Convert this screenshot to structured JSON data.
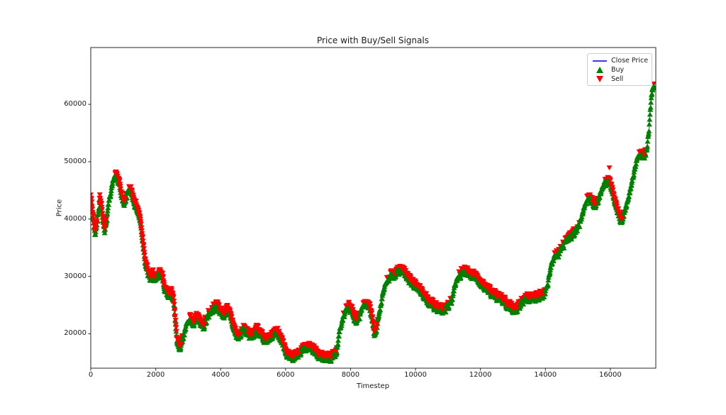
{
  "title": "Price with Buy/Sell Signals",
  "axes": {
    "xlabel": "Timestep",
    "ylabel": "Price",
    "xticks": [
      0,
      2000,
      4000,
      6000,
      8000,
      10000,
      12000,
      14000,
      16000
    ],
    "yticks": [
      20000,
      30000,
      40000,
      50000,
      60000
    ],
    "xlim": [
      0,
      17400
    ],
    "ylim": [
      14000,
      69900
    ],
    "grid": false
  },
  "legend": {
    "position": "upper right",
    "items": [
      {
        "label": "Close Price",
        "marker": "line",
        "color": "#3a3ae0"
      },
      {
        "label": "Buy",
        "marker": "triangle-up",
        "color": "#008000"
      },
      {
        "label": "Sell",
        "marker": "triangle-down",
        "color": "#ff0000"
      }
    ]
  },
  "colors": {
    "close_line": "#3a3ae0",
    "buy": "#008000",
    "sell": "#ff0000",
    "spine": "#262626",
    "text": "#1a1a1a"
  },
  "chart_data": {
    "type": "line",
    "title": "Price with Buy/Sell Signals",
    "xlabel": "Timestep",
    "ylabel": "Price",
    "xlim": [
      0,
      17400
    ],
    "ylim": [
      14000,
      69900
    ],
    "legend_position": "upper right",
    "series": [
      {
        "name": "Close Price",
        "note": "close price vs timestep; anchor points read from plot, buy/sell triangle markers densely cover the whole line (red sells on top edge, green buys on bottom edge, green runs on steep rallies)",
        "points": [
          [
            0,
            43800
          ],
          [
            60,
            41000
          ],
          [
            130,
            37600
          ],
          [
            200,
            39800
          ],
          [
            280,
            43900
          ],
          [
            360,
            41000
          ],
          [
            430,
            38200
          ],
          [
            500,
            40600
          ],
          [
            560,
            43000
          ],
          [
            640,
            45500
          ],
          [
            720,
            47300
          ],
          [
            800,
            47600
          ],
          [
            870,
            46300
          ],
          [
            950,
            44200
          ],
          [
            1030,
            42800
          ],
          [
            1120,
            44600
          ],
          [
            1200,
            45400
          ],
          [
            1280,
            44300
          ],
          [
            1360,
            42800
          ],
          [
            1450,
            41600
          ],
          [
            1520,
            40000
          ],
          [
            1600,
            36500
          ],
          [
            1680,
            32800
          ],
          [
            1760,
            30600
          ],
          [
            1840,
            29600
          ],
          [
            1920,
            30400
          ],
          [
            2000,
            29300
          ],
          [
            2080,
            30300
          ],
          [
            2160,
            30800
          ],
          [
            2240,
            29000
          ],
          [
            2320,
            27400
          ],
          [
            2400,
            26700
          ],
          [
            2470,
            27600
          ],
          [
            2540,
            26500
          ],
          [
            2600,
            23000
          ],
          [
            2660,
            18600
          ],
          [
            2720,
            17600
          ],
          [
            2800,
            18800
          ],
          [
            2880,
            20000
          ],
          [
            2960,
            21700
          ],
          [
            3060,
            22500
          ],
          [
            3160,
            21600
          ],
          [
            3260,
            23100
          ],
          [
            3360,
            22100
          ],
          [
            3460,
            21400
          ],
          [
            3560,
            22700
          ],
          [
            3680,
            23800
          ],
          [
            3800,
            24700
          ],
          [
            3900,
            25100
          ],
          [
            4000,
            23900
          ],
          [
            4100,
            23300
          ],
          [
            4200,
            24400
          ],
          [
            4300,
            23400
          ],
          [
            4400,
            21200
          ],
          [
            4500,
            19600
          ],
          [
            4600,
            20000
          ],
          [
            4700,
            21100
          ],
          [
            4800,
            20500
          ],
          [
            4900,
            19600
          ],
          [
            5000,
            19900
          ],
          [
            5100,
            20600
          ],
          [
            5200,
            20100
          ],
          [
            5300,
            19500
          ],
          [
            5400,
            18900
          ],
          [
            5500,
            19200
          ],
          [
            5600,
            19800
          ],
          [
            5700,
            20400
          ],
          [
            5800,
            20100
          ],
          [
            5900,
            18800
          ],
          [
            6000,
            16900
          ],
          [
            6100,
            16100
          ],
          [
            6200,
            15800
          ],
          [
            6300,
            16100
          ],
          [
            6400,
            16600
          ],
          [
            6500,
            17100
          ],
          [
            6600,
            17700
          ],
          [
            6700,
            18100
          ],
          [
            6800,
            17700
          ],
          [
            6900,
            16900
          ],
          [
            7000,
            16400
          ],
          [
            7100,
            16000
          ],
          [
            7200,
            15800
          ],
          [
            7300,
            15900
          ],
          [
            7400,
            16100
          ],
          [
            7500,
            16400
          ],
          [
            7580,
            17200
          ],
          [
            7650,
            20200
          ],
          [
            7750,
            22700
          ],
          [
            7850,
            23900
          ],
          [
            7950,
            24700
          ],
          [
            8050,
            24100
          ],
          [
            8150,
            22400
          ],
          [
            8250,
            22900
          ],
          [
            8350,
            24500
          ],
          [
            8450,
            25300
          ],
          [
            8550,
            25100
          ],
          [
            8650,
            23300
          ],
          [
            8730,
            20000
          ],
          [
            8800,
            20800
          ],
          [
            8900,
            24500
          ],
          [
            9000,
            27300
          ],
          [
            9100,
            28900
          ],
          [
            9200,
            29900
          ],
          [
            9300,
            30300
          ],
          [
            9400,
            30700
          ],
          [
            9500,
            31100
          ],
          [
            9600,
            31000
          ],
          [
            9700,
            30300
          ],
          [
            9800,
            29600
          ],
          [
            9900,
            29000
          ],
          [
            10000,
            28400
          ],
          [
            10100,
            28000
          ],
          [
            10200,
            27400
          ],
          [
            10300,
            26400
          ],
          [
            10400,
            25700
          ],
          [
            10500,
            25200
          ],
          [
            10600,
            24700
          ],
          [
            10700,
            24300
          ],
          [
            10800,
            24100
          ],
          [
            10900,
            24500
          ],
          [
            11000,
            24900
          ],
          [
            11100,
            25600
          ],
          [
            11200,
            28000
          ],
          [
            11300,
            30000
          ],
          [
            11400,
            30700
          ],
          [
            11500,
            31000
          ],
          [
            11600,
            30900
          ],
          [
            11700,
            30500
          ],
          [
            11800,
            30200
          ],
          [
            11900,
            29700
          ],
          [
            12000,
            29100
          ],
          [
            12100,
            28500
          ],
          [
            12200,
            27900
          ],
          [
            12300,
            27300
          ],
          [
            12400,
            26900
          ],
          [
            12500,
            26600
          ],
          [
            12600,
            26300
          ],
          [
            12700,
            25900
          ],
          [
            12800,
            25400
          ],
          [
            12900,
            25000
          ],
          [
            13000,
            24600
          ],
          [
            13100,
            24400
          ],
          [
            13200,
            25000
          ],
          [
            13300,
            25700
          ],
          [
            13400,
            26200
          ],
          [
            13500,
            26400
          ],
          [
            13600,
            26200
          ],
          [
            13700,
            26300
          ],
          [
            13800,
            26600
          ],
          [
            13900,
            26900
          ],
          [
            14000,
            27400
          ],
          [
            14080,
            29000
          ],
          [
            14160,
            31500
          ],
          [
            14240,
            33000
          ],
          [
            14320,
            33900
          ],
          [
            14400,
            34200
          ],
          [
            14480,
            34900
          ],
          [
            14560,
            35700
          ],
          [
            14640,
            36500
          ],
          [
            14720,
            37000
          ],
          [
            14800,
            37100
          ],
          [
            14880,
            37700
          ],
          [
            14960,
            38400
          ],
          [
            15040,
            39200
          ],
          [
            15120,
            40300
          ],
          [
            15200,
            41900
          ],
          [
            15280,
            43300
          ],
          [
            15360,
            43900
          ],
          [
            15440,
            43400
          ],
          [
            15520,
            42500
          ],
          [
            15600,
            43000
          ],
          [
            15680,
            44300
          ],
          [
            15760,
            45600
          ],
          [
            15840,
            46300
          ],
          [
            15920,
            46700
          ],
          [
            16000,
            46200
          ],
          [
            16080,
            44700
          ],
          [
            16160,
            43000
          ],
          [
            16240,
            41200
          ],
          [
            16320,
            39900
          ],
          [
            16400,
            40400
          ],
          [
            16480,
            42000
          ],
          [
            16560,
            43900
          ],
          [
            16640,
            45800
          ],
          [
            16720,
            47900
          ],
          [
            16800,
            50000
          ],
          [
            16880,
            51200
          ],
          [
            16960,
            51400
          ],
          [
            17040,
            51000
          ],
          [
            17100,
            51800
          ],
          [
            17150,
            53500
          ],
          [
            17200,
            56500
          ],
          [
            17250,
            60000
          ],
          [
            17290,
            62500
          ],
          [
            17330,
            63300
          ],
          [
            17360,
            63200
          ]
        ]
      }
    ],
    "outlier_sell_marker": [
      15970,
      48900
    ],
    "marker_note": "buy and sell signal markers occur at nearly every timestep along the whole series"
  }
}
